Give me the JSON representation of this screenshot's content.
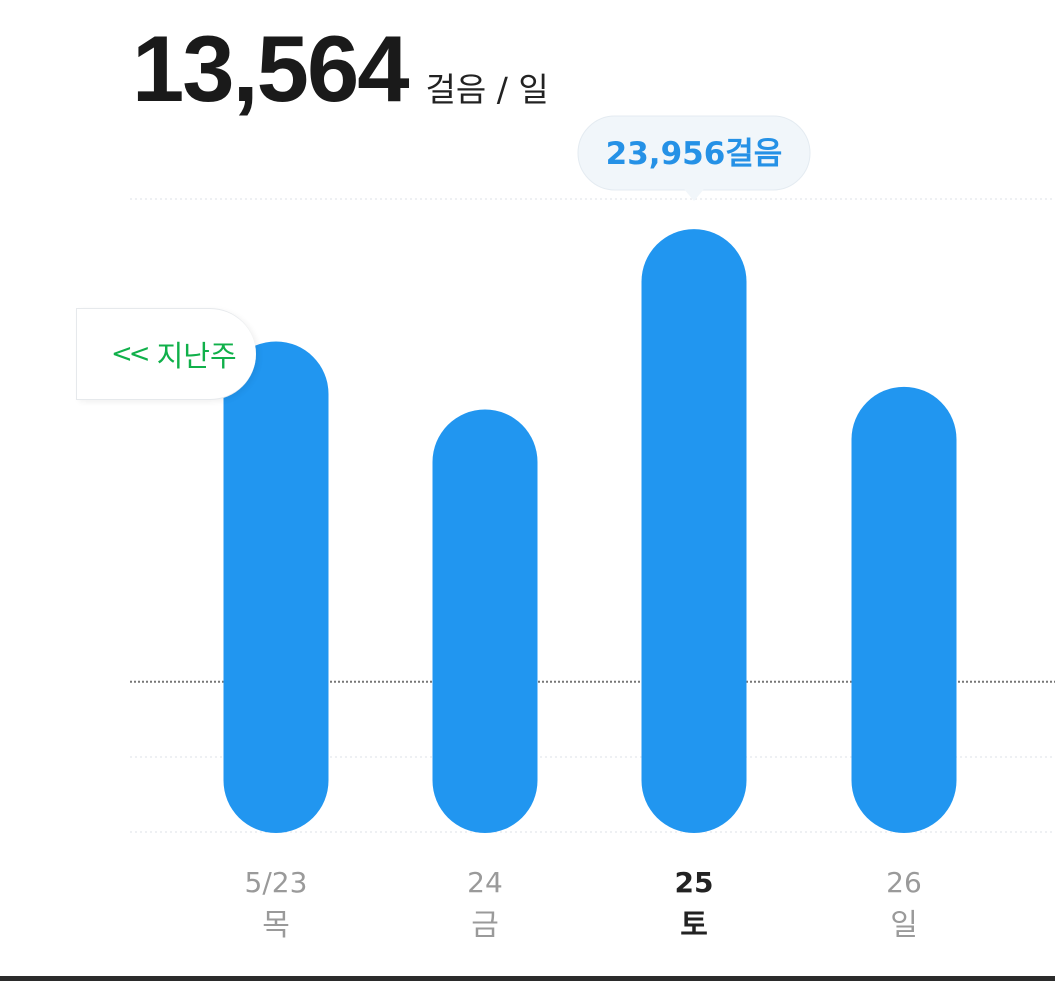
{
  "header": {
    "average_value": "13,564",
    "unit": "걸음 / 일"
  },
  "prev_week": {
    "icon": "double-chevron-left-icon",
    "label": "지난주"
  },
  "colors": {
    "bar": "#2196f0",
    "tooltip_text": "#2591e6",
    "tooltip_bg": "#f1f6fa",
    "prev_week_text": "#10b04a",
    "avg_line": "#777777"
  },
  "chart_data": {
    "type": "bar",
    "categories": [
      "5/23 목",
      "24 금",
      "25 토",
      "26 일"
    ],
    "date_labels": [
      "5/23",
      "24",
      "25",
      "26"
    ],
    "weekday_labels": [
      "목",
      "금",
      "토",
      "일"
    ],
    "values": [
      19500,
      16800,
      23956,
      17700
    ],
    "selected_index": 2,
    "tooltip": "23,956걸음",
    "average": 6000,
    "ylim": [
      0,
      24000
    ],
    "grid": true
  }
}
